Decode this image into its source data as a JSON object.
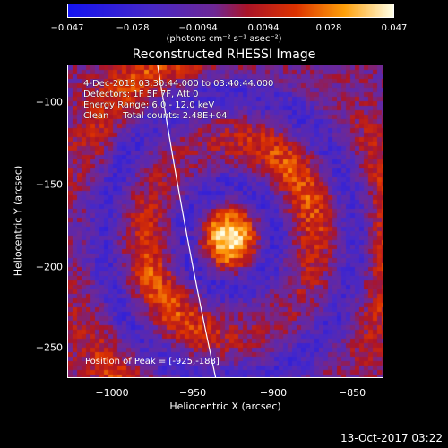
{
  "colorbar": {
    "ticks": [
      "−0.047",
      "−0.028",
      "−0.0094",
      "0.0094",
      "0.028",
      "0.047"
    ],
    "units": "(photons cm⁻² s⁻¹ asec⁻²)",
    "range": [
      -0.047,
      0.047
    ]
  },
  "title": "Reconstructed RHESSI Image",
  "info": {
    "time": "4-Dec-2015 03:30:44.000 to 03:40:44.000",
    "detectors": "Detectors: 1F 5F 7F, Att 0",
    "energy": "Energy Range: 6.0 - 12.0 keV",
    "clean": "Clean     Total counts: 2.48E+04"
  },
  "peak": "Position of Peak = [-925,-188]",
  "axes": {
    "xtitle": "Heliocentric X (arcsec)",
    "ytitle": "Heliocentric Y (arcsec)",
    "xticks": [
      "−1000",
      "−950",
      "−900",
      "−850"
    ],
    "yticks": [
      "−100",
      "−150",
      "−200",
      "−250"
    ],
    "xrange": [
      -1028,
      -830
    ],
    "yrange": [
      -272,
      -76
    ]
  },
  "footer": {
    "date": "13-Oct-2017 03:22"
  },
  "colors": {
    "background": "#000000",
    "text": "#ffffff",
    "limb": "#ffffff"
  }
}
